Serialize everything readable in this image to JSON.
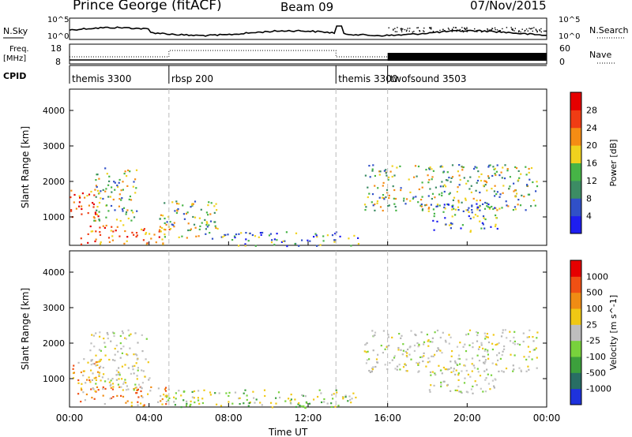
{
  "header": {
    "station": "Prince George (fitACF)",
    "beam": "Beam 09",
    "date": "07/Nov/2015"
  },
  "left_labels": {
    "nsky": "N.Sky",
    "freq_line1": "Freq.",
    "freq_line2": "[MHz]",
    "cpid": "CPID"
  },
  "right_labels": {
    "nsearch": "N.Search",
    "nave": "Nave"
  },
  "top_axes": {
    "nsky_ticks": [
      "10^5",
      "10^0"
    ],
    "nsearch_ticks": [
      "10^5",
      "10^0"
    ],
    "freq_ticks": [
      "18",
      "8"
    ],
    "nave_ticks": [
      "60",
      "0"
    ]
  },
  "cpid_segments": [
    {
      "label": "themis 3300",
      "start": 0,
      "end": 5
    },
    {
      "label": "rbsp 200",
      "start": 5,
      "end": 13.4
    },
    {
      "label": "themis 3300",
      "start": 13.4,
      "end": 16
    },
    {
      "label": "twofsound 3503",
      "start": 16,
      "end": 24
    }
  ],
  "chart_data": [
    {
      "type": "heatmap",
      "panel": "power",
      "ylabel": "Slant Range [km]",
      "xlabel": "Time UT",
      "xlim": [
        0,
        24
      ],
      "ylim": [
        200,
        4600
      ],
      "y_ticks": [
        1000,
        2000,
        3000,
        4000
      ],
      "x_ticks": [
        "00:00",
        "04:00",
        "08:00",
        "12:00",
        "16:00",
        "20:00",
        "00:00"
      ],
      "colorbar": {
        "label": "Power [dB]",
        "ticks": [
          "4",
          "8",
          "12",
          "16",
          "20",
          "24",
          "28"
        ],
        "colors": [
          "#1e1ef0",
          "#3050c8",
          "#3c8c64",
          "#46b446",
          "#f0d21e",
          "#f58c14",
          "#f03c14",
          "#e60000"
        ]
      },
      "regions": [
        {
          "t": [
            0.0,
            1.5
          ],
          "r": [
            900,
            1800
          ],
          "level": "high"
        },
        {
          "t": [
            0.5,
            5.0
          ],
          "r": [
            250,
            800
          ],
          "level": "high"
        },
        {
          "t": [
            1.2,
            3.4
          ],
          "r": [
            900,
            2400
          ],
          "level": "mid"
        },
        {
          "t": [
            4.5,
            7.5
          ],
          "r": [
            400,
            1500
          ],
          "level": "mid"
        },
        {
          "t": [
            7.5,
            14.5
          ],
          "r": [
            200,
            600
          ],
          "level": "low"
        },
        {
          "t": [
            14.8,
            23.5
          ],
          "r": [
            1200,
            2500
          ],
          "level": "mid"
        },
        {
          "t": [
            18.0,
            21.5
          ],
          "r": [
            600,
            1400
          ],
          "level": "low"
        }
      ]
    },
    {
      "type": "heatmap",
      "panel": "velocity",
      "ylabel": "Slant Range [km]",
      "xlabel": "Time UT",
      "xlim": [
        0,
        24
      ],
      "ylim": [
        200,
        4600
      ],
      "y_ticks": [
        1000,
        2000,
        3000,
        4000
      ],
      "x_ticks": [
        "00:00",
        "04:00",
        "08:00",
        "12:00",
        "16:00",
        "20:00",
        "00:00"
      ],
      "colorbar": {
        "label": "Velocity [m s^-1]",
        "ticks": [
          "1000",
          "500",
          "100",
          "25",
          "-25",
          "-100",
          "-500",
          "-1000"
        ],
        "colors": [
          "#1e32dc",
          "#286e64",
          "#3ca03c",
          "#78d23c",
          "#bebebe",
          "#f0c814",
          "#f08c14",
          "#f05014",
          "#e60000"
        ]
      },
      "regions": [
        {
          "t": [
            0.0,
            1.5
          ],
          "r": [
            500,
            1600
          ],
          "level": "orange"
        },
        {
          "t": [
            0.5,
            5.0
          ],
          "r": [
            250,
            800
          ],
          "level": "orange"
        },
        {
          "t": [
            1.0,
            4.0
          ],
          "r": [
            700,
            2400
          ],
          "level": "grey"
        },
        {
          "t": [
            4.5,
            14.5
          ],
          "r": [
            200,
            700
          ],
          "level": "green"
        },
        {
          "t": [
            14.8,
            23.5
          ],
          "r": [
            1200,
            2400
          ],
          "level": "grey"
        },
        {
          "t": [
            18.0,
            21.5
          ],
          "r": [
            600,
            1300
          ],
          "level": "grey"
        }
      ]
    }
  ],
  "time_marks": [
    5.0,
    13.4,
    16.0
  ]
}
